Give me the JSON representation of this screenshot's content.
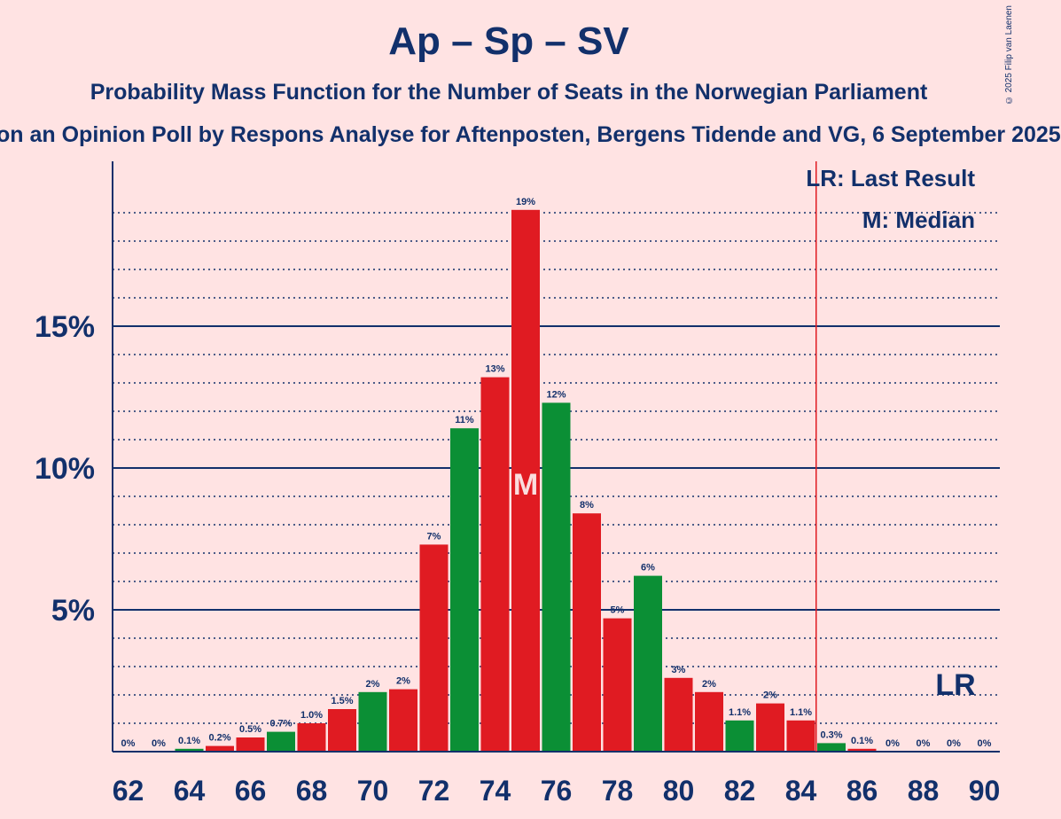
{
  "header": {
    "title": "Ap – Sp – SV",
    "subtitle": "Probability Mass Function for the Number of Seats in the Norwegian Parliament",
    "subtitle2": "on an Opinion Poll by Respons Analyse for Aftenposten, Bergens Tidende and VG, 6 September 2025",
    "copyright": "© 2025 Filip van Laenen"
  },
  "legend": {
    "last_result": "LR: Last Result",
    "median": "M: Median"
  },
  "colors": {
    "red": "#e01b22",
    "green": "#0b8f35",
    "axis": "#12306b",
    "majority_line": "#e01b22",
    "background": "#ffe3e3"
  },
  "chart_data": {
    "type": "bar",
    "x": [
      62,
      63,
      64,
      65,
      66,
      67,
      68,
      69,
      70,
      71,
      72,
      73,
      74,
      75,
      76,
      77,
      78,
      79,
      80,
      81,
      82,
      83,
      84,
      85,
      86,
      87,
      88,
      89,
      90
    ],
    "values": [
      0,
      0,
      0.1,
      0.2,
      0.5,
      0.7,
      1.0,
      1.5,
      2.1,
      2.2,
      7.3,
      11.4,
      13.2,
      19.1,
      12.3,
      8.4,
      4.7,
      6.2,
      2.6,
      2.1,
      1.1,
      1.7,
      1.1,
      0.3,
      0.1,
      0,
      0,
      0,
      0
    ],
    "value_labels": [
      "0%",
      "0%",
      "0.1%",
      "0.2%",
      "0.5%",
      "0.7%",
      "1.0%",
      "1.5%",
      "2%",
      "2%",
      "7%",
      "11%",
      "13%",
      "19%",
      "12%",
      "8%",
      "5%",
      "6%",
      "3%",
      "2%",
      "1.1%",
      "2%",
      "1.1%",
      "0.3%",
      "0.1%",
      "0%",
      "0%",
      "0%",
      "0%"
    ],
    "bar_colors": [
      "red",
      "red",
      "green",
      "red",
      "red",
      "green",
      "red",
      "red",
      "green",
      "red",
      "red",
      "green",
      "red",
      "red",
      "green",
      "red",
      "red",
      "green",
      "red",
      "red",
      "green",
      "red",
      "red",
      "green",
      "red",
      "red",
      "green",
      "red",
      "red"
    ],
    "x_ticks": [
      "62",
      "64",
      "66",
      "68",
      "70",
      "72",
      "74",
      "76",
      "78",
      "80",
      "82",
      "84",
      "86",
      "88",
      "90"
    ],
    "y_ticks": [
      "5%",
      "10%",
      "15%"
    ],
    "y_tick_values": [
      5,
      10,
      15
    ],
    "ylim": [
      0,
      20.8
    ],
    "median_seat": 75,
    "median_label": "M",
    "last_result_seat": 89,
    "last_result_label": "LR",
    "majority_seat": 84.5
  }
}
